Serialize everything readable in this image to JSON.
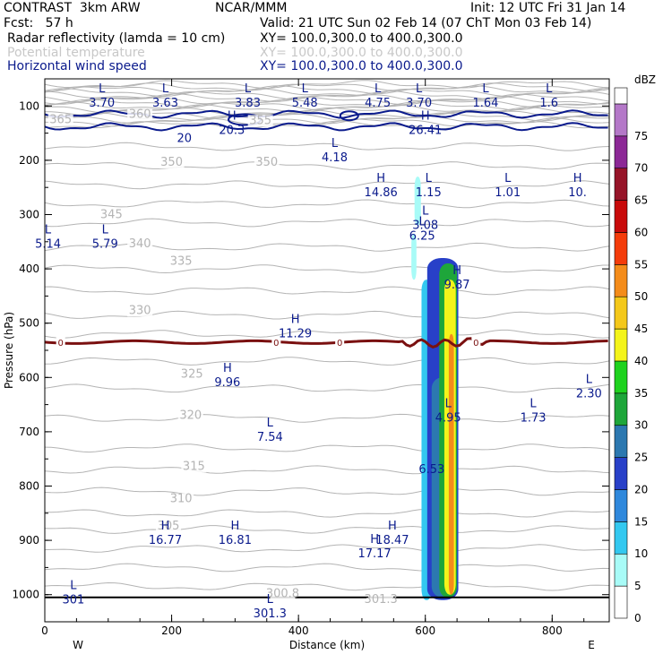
{
  "header": {
    "title": "CONTRAST  3km ARW",
    "source": "NCAR/MMM",
    "init": "Init: 12 UTC Fri 31 Jan 14",
    "fcst": "Fcst:   57 h",
    "valid": "Valid: 21 UTC Sun 02 Feb 14 (07 ChT Mon 03 Feb 14)",
    "field1": "Radar reflectivity (lamda = 10 cm)",
    "field1_xy": "XY= 100.0,300.0 to 400.0,300.0",
    "field2": "Potential temperature",
    "field2_xy": "XY= 100.0,300.0 to 400.0,300.0",
    "field3": "Horizontal wind speed",
    "field3_xy": "XY= 100.0,300.0 to 400.0,300.0"
  },
  "colors": {
    "theta": "#b4b4b4",
    "wind": "#0a1a8c",
    "zero_isotherm": "#7a1010"
  },
  "chart_data": {
    "type": "heatmap",
    "title": "",
    "xlabel": "Distance (km)",
    "ylabel": "Pressure (hPa)",
    "xlim": [
      0,
      890
    ],
    "ylim": [
      1050,
      50
    ],
    "xticks": [
      0,
      200,
      400,
      600,
      800
    ],
    "yticks": [
      100,
      200,
      300,
      400,
      500,
      600,
      700,
      800,
      900,
      1000
    ],
    "x_end_labels": {
      "left": "W",
      "right": "E"
    },
    "colorbar": {
      "unit": "dBZ",
      "levels": [
        0,
        5,
        10,
        15,
        20,
        25,
        30,
        35,
        40,
        45,
        50,
        55,
        60,
        65,
        70,
        75
      ],
      "colors": [
        "#ffffff",
        "#a8fbf7",
        "#33c8f0",
        "#2f88dc",
        "#2840c8",
        "#2c78b0",
        "#1ea63a",
        "#1ed21e",
        "#f4f41a",
        "#f4c81a",
        "#f48c1a",
        "#f43c0a",
        "#c80a0a",
        "#961428",
        "#8c2896",
        "#b478c8"
      ]
    },
    "theta_labels": [
      {
        "x": 25,
        "p": 132,
        "v": "365"
      },
      {
        "x": 150,
        "p": 122,
        "v": "360"
      },
      {
        "x": 340,
        "p": 133,
        "v": "355"
      },
      {
        "x": 350,
        "p": 210,
        "v": "350"
      },
      {
        "x": 200,
        "p": 210,
        "v": "350"
      },
      {
        "x": 105,
        "p": 307,
        "v": "345"
      },
      {
        "x": 150,
        "p": 360,
        "v": "340"
      },
      {
        "x": 215,
        "p": 392,
        "v": "335"
      },
      {
        "x": 150,
        "p": 483,
        "v": "330"
      },
      {
        "x": 232,
        "p": 600,
        "v": "325"
      },
      {
        "x": 230,
        "p": 676,
        "v": "320"
      },
      {
        "x": 235,
        "p": 770,
        "v": "315"
      },
      {
        "x": 215,
        "p": 830,
        "v": "310"
      },
      {
        "x": 195,
        "p": 880,
        "v": "305"
      },
      {
        "x": 530,
        "p": 1015,
        "v": "301.3"
      },
      {
        "x": 375,
        "p": 1005,
        "v": "300.8"
      }
    ],
    "wind_labels": [
      {
        "x": 90,
        "p": 75,
        "kind": "L",
        "v": "3.70"
      },
      {
        "x": 190,
        "p": 75,
        "kind": "L",
        "v": "3.63"
      },
      {
        "x": 320,
        "p": 75,
        "kind": "L",
        "v": "3.83"
      },
      {
        "x": 410,
        "p": 75,
        "kind": "L",
        "v": "5.48"
      },
      {
        "x": 525,
        "p": 75,
        "kind": "L",
        "v": "4.75"
      },
      {
        "x": 590,
        "p": 75,
        "kind": "L",
        "v": "3.70"
      },
      {
        "x": 695,
        "p": 75,
        "kind": "L",
        "v": "1.64"
      },
      {
        "x": 795,
        "p": 75,
        "kind": "L",
        "v": "1.6"
      },
      {
        "x": 220,
        "p": 140,
        "kind": "",
        "v": "20"
      },
      {
        "x": 295,
        "p": 125,
        "kind": "H",
        "v": "20.3"
      },
      {
        "x": 600,
        "p": 125,
        "kind": "H",
        "v": "26.41"
      },
      {
        "x": 457,
        "p": 175,
        "kind": "L",
        "v": "4.18"
      },
      {
        "x": 530,
        "p": 240,
        "kind": "H",
        "v": "14.86"
      },
      {
        "x": 605,
        "p": 240,
        "kind": "L",
        "v": "1.15"
      },
      {
        "x": 730,
        "p": 240,
        "kind": "L",
        "v": "1.01"
      },
      {
        "x": 840,
        "p": 240,
        "kind": "H",
        "v": "10."
      },
      {
        "x": 600,
        "p": 300,
        "kind": "L",
        "v": "3.08"
      },
      {
        "x": 5,
        "p": 335,
        "kind": "L",
        "v": "5.14"
      },
      {
        "x": 95,
        "p": 335,
        "kind": "L",
        "v": "5.79"
      },
      {
        "x": 595,
        "p": 320,
        "kind": "L",
        "v": "6.25"
      },
      {
        "x": 650,
        "p": 410,
        "kind": "H",
        "v": "9.87"
      },
      {
        "x": 395,
        "p": 500,
        "kind": "H",
        "v": "11.29"
      },
      {
        "x": 288,
        "p": 590,
        "kind": "H",
        "v": "9.96"
      },
      {
        "x": 858,
        "p": 610,
        "kind": "L",
        "v": "2.30"
      },
      {
        "x": 636,
        "p": 655,
        "kind": "L",
        "v": "4.95"
      },
      {
        "x": 770,
        "p": 655,
        "kind": "L",
        "v": "1.73"
      },
      {
        "x": 355,
        "p": 690,
        "kind": "L",
        "v": "7.54"
      },
      {
        "x": 610,
        "p": 750,
        "kind": "",
        "v": "6.53"
      },
      {
        "x": 190,
        "p": 880,
        "kind": "H",
        "v": "16.77"
      },
      {
        "x": 300,
        "p": 880,
        "kind": "H",
        "v": "16.81"
      },
      {
        "x": 548,
        "p": 880,
        "kind": "H",
        "v": "18.47"
      },
      {
        "x": 520,
        "p": 905,
        "kind": "H",
        "v": "17.17"
      },
      {
        "x": 355,
        "p": 1015,
        "kind": "L",
        "v": "301.3"
      },
      {
        "x": 45,
        "p": 990,
        "kind": "L",
        "v": "301"
      }
    ],
    "zero_labels": [
      {
        "x": 25,
        "v": "0"
      },
      {
        "x": 365,
        "v": "0"
      },
      {
        "x": 465,
        "v": "0"
      },
      {
        "x": 680,
        "v": "0"
      }
    ],
    "reflectivity_core": [
      {
        "x0": 583,
        "x1": 593,
        "p0": 230,
        "p1": 320,
        "dbz": 5
      },
      {
        "x0": 578,
        "x1": 586,
        "p0": 335,
        "p1": 420,
        "dbz": 5
      },
      {
        "x0": 594,
        "x1": 610,
        "p0": 420,
        "p1": 1010,
        "dbz": 10
      },
      {
        "x0": 603,
        "x1": 652,
        "p0": 380,
        "p1": 1010,
        "dbz": 20
      },
      {
        "x0": 610,
        "x1": 646,
        "p0": 600,
        "p1": 1005,
        "dbz": 25
      },
      {
        "x0": 622,
        "x1": 650,
        "p0": 390,
        "p1": 1005,
        "dbz": 30
      },
      {
        "x0": 630,
        "x1": 648,
        "p0": 420,
        "p1": 1000,
        "dbz": 40
      },
      {
        "x0": 637,
        "x1": 645,
        "p0": 520,
        "p1": 1000,
        "dbz": 50
      }
    ]
  }
}
